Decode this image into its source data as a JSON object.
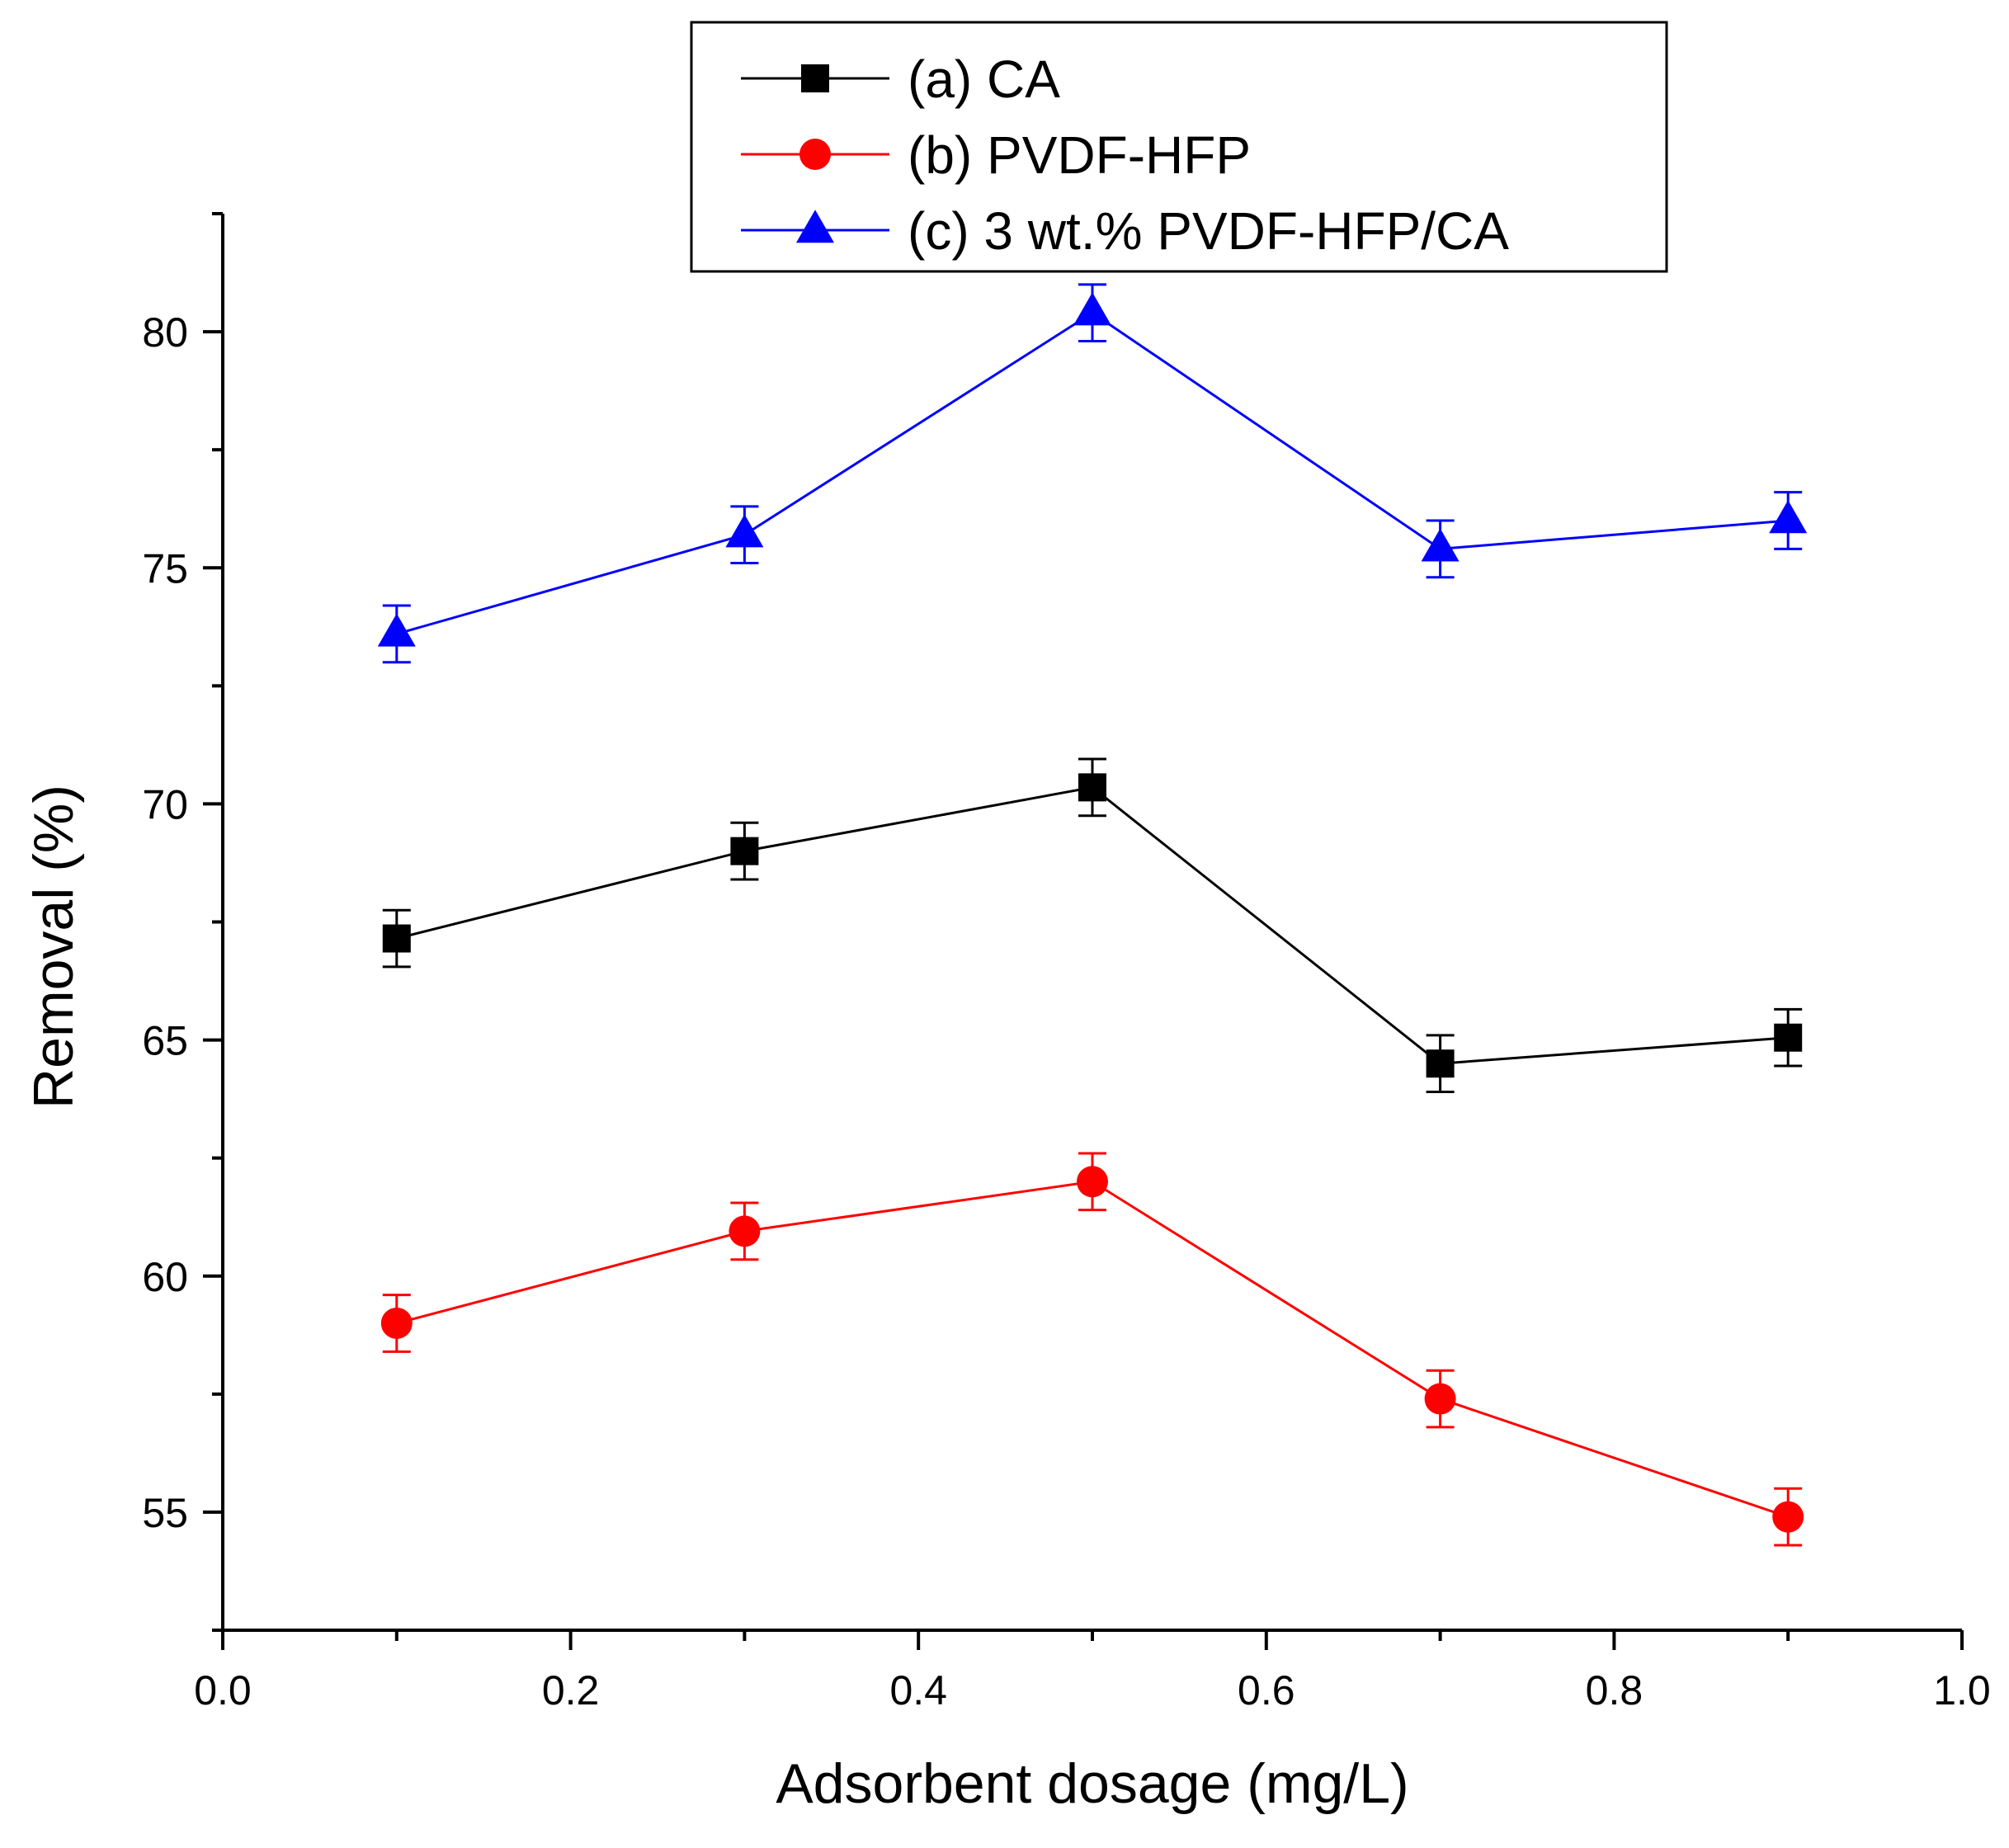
{
  "chart_data": {
    "type": "line",
    "xlabel": "Adsorbent dosage (mg/L)",
    "ylabel": "Removal (%)",
    "xlim": [
      0.0,
      1.0
    ],
    "ylim": [
      52.5,
      82.5
    ],
    "x_ticks": [
      0.0,
      0.2,
      0.4,
      0.6,
      0.8,
      1.0
    ],
    "x_tick_labels": [
      "0.0",
      "0.2",
      "0.4",
      "0.6",
      "0.8",
      "1.0"
    ],
    "y_ticks": [
      55,
      60,
      65,
      70,
      75,
      80
    ],
    "y_tick_labels": [
      "55",
      "60",
      "65",
      "70",
      "75",
      "80"
    ],
    "y_minor_ticks": [
      52.5,
      57.5,
      62.5,
      67.5,
      72.5,
      77.5,
      82.5
    ],
    "x_minor_ticks": [
      0.1,
      0.3,
      0.5,
      0.7,
      0.9
    ],
    "grid": false,
    "legend_position": "top-center",
    "x": [
      0.1,
      0.3,
      0.5,
      0.7,
      0.9
    ],
    "series": [
      {
        "name": "(a) CA",
        "marker": "square",
        "color": "#000000",
        "values": [
          67.15,
          69.0,
          70.35,
          64.5,
          65.05
        ],
        "errors": [
          0.6,
          0.6,
          0.6,
          0.6,
          0.6
        ]
      },
      {
        "name": "(b) PVDF-HFP",
        "marker": "circle",
        "color": "#ff0000",
        "values": [
          59.0,
          60.95,
          62.0,
          57.4,
          54.9
        ],
        "errors": [
          0.6,
          0.6,
          0.6,
          0.6,
          0.6
        ]
      },
      {
        "name": "(c) 3 wt.% PVDF-HFP/CA",
        "marker": "triangle",
        "color": "#0000ff",
        "values": [
          73.6,
          75.7,
          80.4,
          75.4,
          76.0
        ],
        "errors": [
          0.6,
          0.6,
          0.6,
          0.6,
          0.6
        ]
      }
    ]
  }
}
